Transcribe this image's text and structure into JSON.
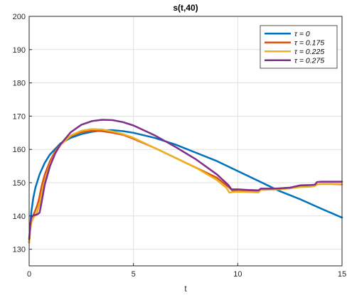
{
  "chart_data": {
    "type": "line",
    "title": "s(t,40)",
    "xlabel": "t",
    "ylabel": "",
    "xlim": [
      0,
      15
    ],
    "ylim": [
      125,
      200
    ],
    "xticks": [
      0,
      5,
      10,
      15
    ],
    "yticks": [
      130,
      140,
      150,
      160,
      170,
      180,
      190,
      200
    ],
    "grid": true,
    "legend_position": "top-right",
    "series": [
      {
        "name": "τ = 0",
        "color": "#0072BD",
        "x": [
          0,
          0.1,
          0.2,
          0.3,
          0.5,
          0.75,
          1,
          1.5,
          2,
          2.5,
          3,
          3.5,
          4,
          4.5,
          5,
          6,
          7,
          8,
          9,
          10,
          11,
          12,
          13,
          14,
          15
        ],
        "y": [
          132,
          141,
          145.5,
          148.5,
          152.5,
          156,
          158.5,
          161.8,
          163.5,
          164.6,
          165.3,
          165.7,
          165.8,
          165.5,
          165,
          163.5,
          161.5,
          159,
          156.5,
          153.5,
          150.5,
          147.5,
          145,
          142.2,
          139.5
        ]
      },
      {
        "name": "τ = 0.175",
        "color": "#D95319",
        "x": [
          0,
          0.05,
          0.1,
          0.18,
          0.25,
          0.35,
          0.45,
          0.5,
          0.6,
          0.75,
          1,
          1.25,
          1.5,
          2,
          2.5,
          3,
          3.5,
          4,
          4.5,
          5,
          6,
          7,
          8,
          9,
          9.6,
          9.75,
          10,
          10.5,
          11,
          11.1,
          11.5,
          12,
          12.5,
          13,
          13.5,
          13.7,
          13.8,
          14,
          14.5,
          15
        ],
        "y": [
          132,
          136,
          138.5,
          140,
          141,
          142.5,
          144.5,
          146,
          149,
          152.5,
          156.5,
          159.5,
          161.5,
          164,
          165.2,
          165.6,
          165.5,
          165,
          164.4,
          163.2,
          160.5,
          157.5,
          154.5,
          151.5,
          148.5,
          147.6,
          147.5,
          147.4,
          147.3,
          148,
          148.1,
          148.3,
          148.5,
          148.8,
          148.9,
          149.1,
          149.5,
          149.6,
          149.6,
          149.5
        ]
      },
      {
        "name": "τ = 0.225",
        "color": "#EDB120",
        "x": [
          0,
          0.05,
          0.1,
          0.2,
          0.3,
          0.4,
          0.5,
          0.6,
          0.75,
          1,
          1.25,
          1.5,
          2,
          2.5,
          3,
          3.5,
          4,
          4.5,
          5,
          6,
          7,
          8,
          9,
          9.45,
          9.6,
          9.75,
          10,
          10.5,
          11,
          11.1,
          11.5,
          12,
          12.5,
          13,
          13.5,
          13.7,
          13.8,
          14,
          14.5,
          15
        ],
        "y": [
          132,
          135.5,
          138,
          139.5,
          140.2,
          141.5,
          143.5,
          146.5,
          150.5,
          155.5,
          159,
          161.3,
          164.2,
          165.6,
          166.1,
          166,
          165.4,
          164.6,
          163.5,
          160.5,
          157.5,
          154.5,
          150.8,
          148.5,
          147,
          147.2,
          147.3,
          147.2,
          147.1,
          147.8,
          147.9,
          148,
          148.3,
          148.7,
          148.8,
          149,
          149.5,
          149.6,
          149.6,
          149.6
        ]
      },
      {
        "name": "τ = 0.275",
        "color": "#7E2F8E",
        "x": [
          0,
          0.05,
          0.1,
          0.2,
          0.3,
          0.4,
          0.5,
          0.55,
          0.65,
          0.75,
          1,
          1.25,
          1.5,
          2,
          2.5,
          3,
          3.5,
          4,
          4.5,
          5,
          6,
          7,
          8,
          9,
          9.55,
          9.7,
          10,
          10.5,
          11,
          11.1,
          11.5,
          12,
          12.5,
          13,
          13.5,
          13.7,
          13.8,
          14,
          14.5,
          15
        ],
        "y": [
          133,
          137,
          139.5,
          140.2,
          140.3,
          140.5,
          141,
          142.5,
          146,
          149.5,
          155,
          158.8,
          161.5,
          165.2,
          167.4,
          168.5,
          168.9,
          168.8,
          168.2,
          167.2,
          164.3,
          160.8,
          157,
          152.5,
          149.3,
          148,
          148,
          147.8,
          147.7,
          148.2,
          148.2,
          148.3,
          148.5,
          149.2,
          149.3,
          149.4,
          150.2,
          150.3,
          150.3,
          150.3
        ]
      }
    ]
  }
}
